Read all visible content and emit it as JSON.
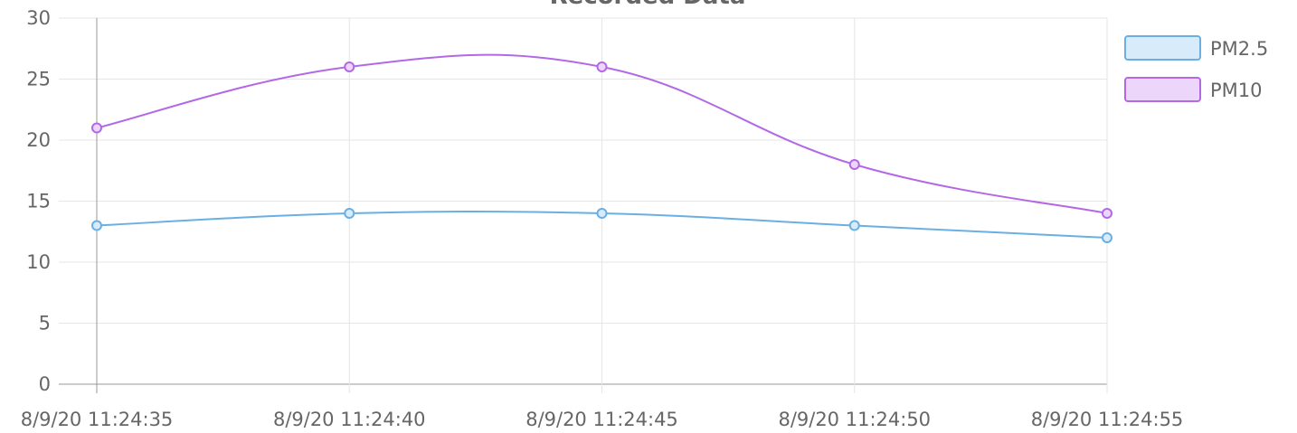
{
  "chart_data": {
    "type": "line",
    "title": "Recorded Data",
    "categories": [
      "8/9/20 11:24:35",
      "8/9/20 11:24:40",
      "8/9/20 11:24:45",
      "8/9/20 11:24:50",
      "8/9/20 11:24:55"
    ],
    "series": [
      {
        "name": "PM2.5",
        "color": "#6aafe3",
        "fill": "#d7ebfa",
        "values": [
          13,
          14,
          14,
          13,
          12
        ]
      },
      {
        "name": "PM10",
        "color": "#b368e6",
        "fill": "#ecd6f9",
        "values": [
          21,
          26,
          26,
          18,
          14
        ]
      }
    ],
    "ylim": [
      0,
      30
    ],
    "yticks": [
      0,
      5,
      10,
      15,
      20,
      25,
      30
    ],
    "grid": true,
    "legend": "right"
  }
}
